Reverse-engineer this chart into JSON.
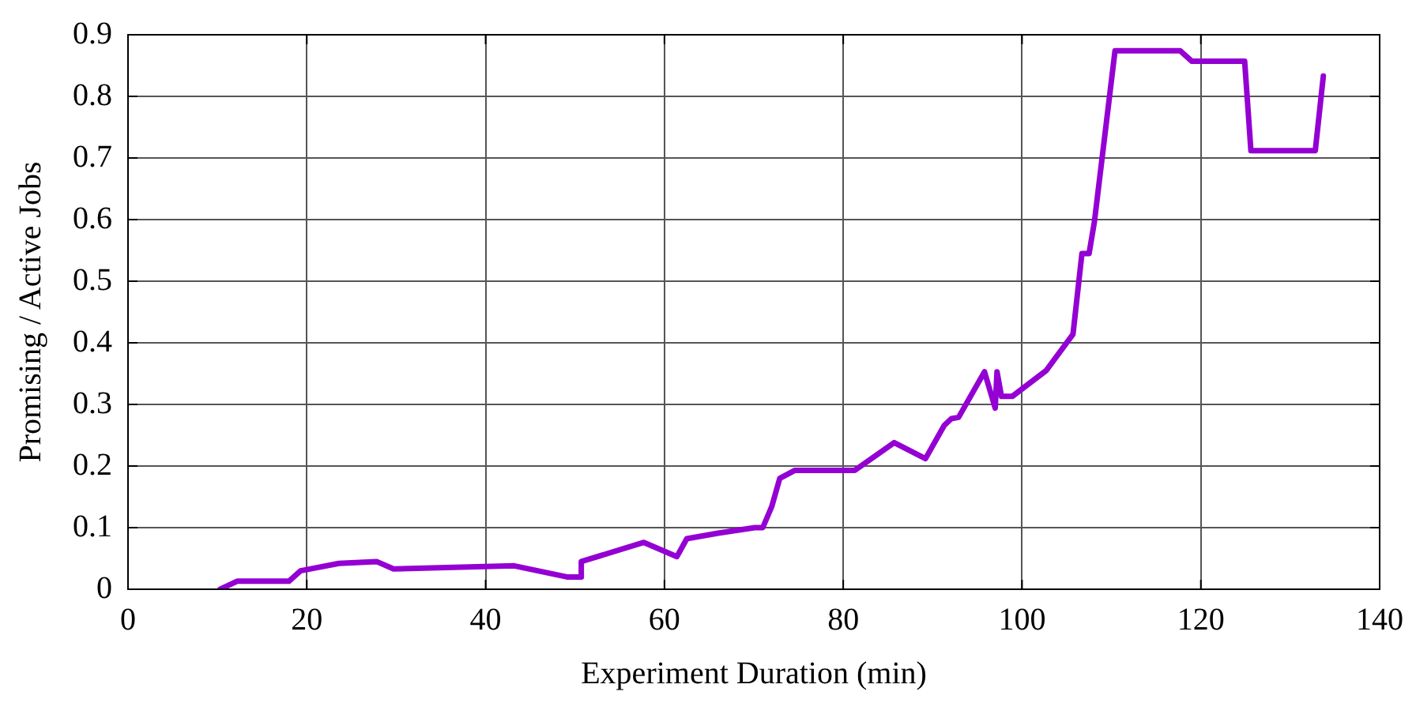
{
  "chart_data": {
    "type": "line",
    "xlabel": "Experiment Duration (min)",
    "ylabel": "Promising / Active Jobs",
    "xlim": [
      0,
      140
    ],
    "xticks": [
      0,
      20,
      40,
      60,
      80,
      100,
      120,
      140
    ],
    "ylim": [
      0,
      0.9
    ],
    "yticks": [
      0,
      0.1,
      0.2,
      0.3,
      0.4,
      0.5,
      0.6,
      0.7,
      0.8,
      0.9
    ],
    "grid": true,
    "marker": "none",
    "line_style": "solid",
    "series": [
      {
        "color": "#9400d3",
        "x": [
          10.3,
          12.2,
          18.0,
          19.3,
          23.6,
          27.8,
          29.7,
          43.2,
          49.1,
          50.6,
          50.7,
          57.7,
          61.4,
          62.5,
          66.0,
          70.1,
          71.0,
          72.0,
          72.9,
          74.6,
          81.3,
          85.7,
          89.2,
          91.3,
          92.1,
          92.9,
          95.8,
          97.0,
          97.2,
          97.7,
          98.9,
          102.7,
          105.7,
          106.7,
          107.5,
          108.1,
          110.4,
          117.7,
          119.0,
          124.9,
          125.6,
          132.8,
          133.7
        ],
        "values": [
          0,
          0.013,
          0.013,
          0.03,
          0.042,
          0.045,
          0.033,
          0.038,
          0.02,
          0.02,
          0.045,
          0.076,
          0.053,
          0.082,
          0.091,
          0.1,
          0.1,
          0.134,
          0.18,
          0.193,
          0.193,
          0.238,
          0.212,
          0.266,
          0.277,
          0.279,
          0.353,
          0.294,
          0.353,
          0.313,
          0.313,
          0.355,
          0.414,
          0.545,
          0.545,
          0.597,
          0.874,
          0.874,
          0.857,
          0.857,
          0.712,
          0.712,
          0.833
        ]
      }
    ]
  }
}
